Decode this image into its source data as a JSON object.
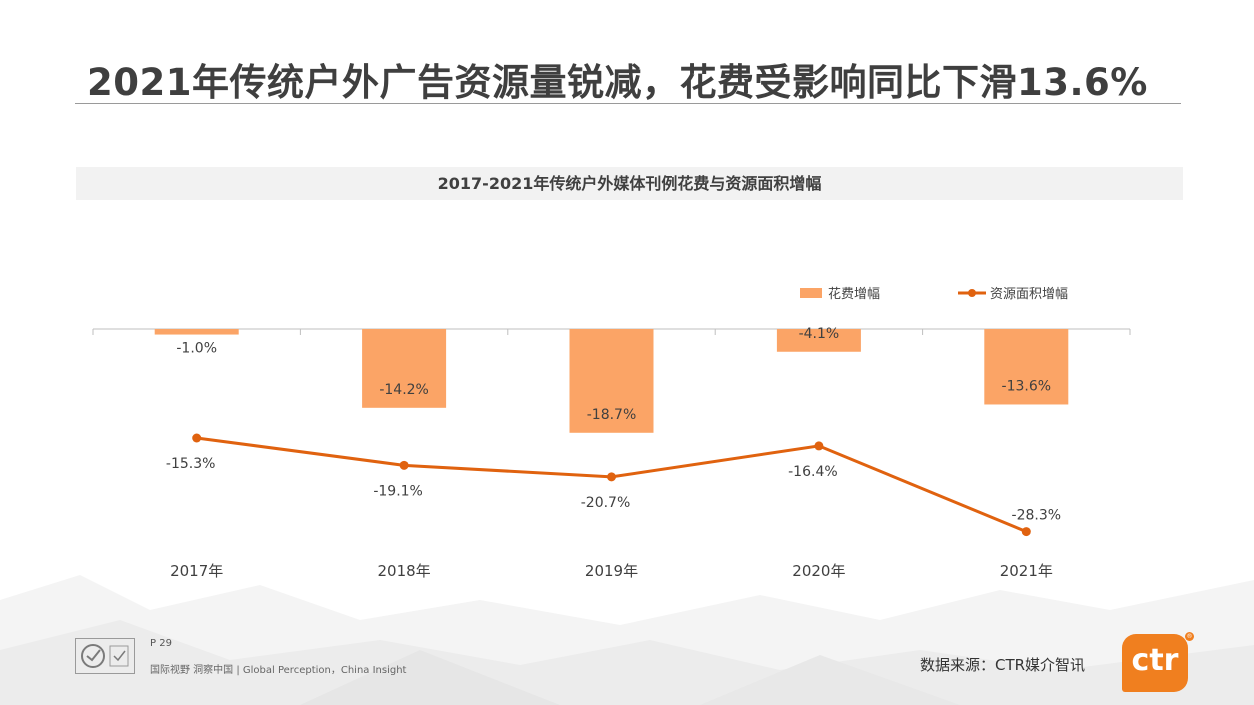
{
  "header": {
    "title": "2021年传统户外广告资源量锐减，花费受影响同比下滑13.6%"
  },
  "chart_data": {
    "type": "bar",
    "title": "2017-2021年传统户外媒体刊例花费与资源面积增幅",
    "categories": [
      "2017年",
      "2018年",
      "2019年",
      "2020年",
      "2021年"
    ],
    "series": [
      {
        "name": "花费增幅",
        "type": "bar",
        "values": [
          -1.0,
          -14.2,
          -18.7,
          -4.1,
          -13.6
        ],
        "labels": [
          "-1.0%",
          "-14.2%",
          "-18.7%",
          "-4.1%",
          "-13.6%"
        ],
        "color": "#FBA466"
      },
      {
        "name": "资源面积增幅",
        "type": "line",
        "values": [
          -15.3,
          -19.1,
          -20.7,
          -16.4,
          -28.3
        ],
        "labels": [
          "-15.3%",
          "-19.1%",
          "-20.7%",
          "-16.4%",
          "-28.3%"
        ],
        "color": "#E0620F"
      }
    ],
    "legend_position": "top-right",
    "grid": false,
    "xlabel": "",
    "ylabel": ""
  },
  "footer": {
    "page": "P 29",
    "tagline": "国际视野 洞察中国 | Global Perception，China Insight",
    "source": "数据来源：CTR媒介智讯",
    "brand": "ctr",
    "registered_mark": "®"
  },
  "colors": {
    "bar": "#FBA466",
    "line": "#E0620F",
    "brand": "#F07F1F"
  }
}
